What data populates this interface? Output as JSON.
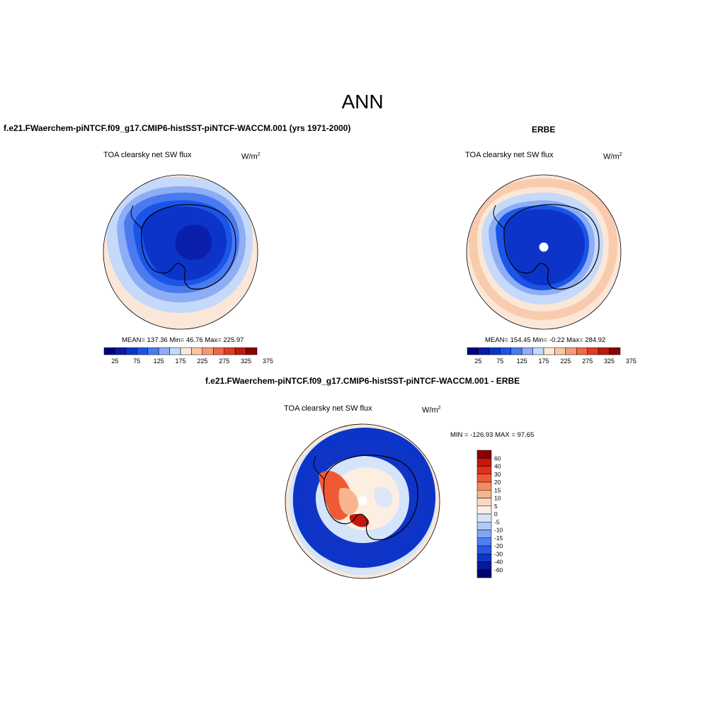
{
  "season_title": "ANN",
  "panels": [
    {
      "case_title": "f.e21.FWaerchem-piNTCF.f09_g17.CMIP6-histSST-piNTCF-WACCM.001 (yrs 1971-2000)",
      "variable": "TOA clearsky net SW flux",
      "units_base": "W/m",
      "units_sup": "2",
      "stats": "MEAN= 137.36  Min=  46.76  Max= 225.97"
    },
    {
      "case_title": "ERBE",
      "variable": "TOA clearsky net SW flux",
      "units_base": "W/m",
      "units_sup": "2",
      "stats": "MEAN= 154.45  Min=  -0.22  Max= 284.92"
    },
    {
      "case_title": "f.e21.FWaerchem-piNTCF.f09_g17.CMIP6-histSST-piNTCF-WACCM.001 - ERBE",
      "variable": "TOA clearsky net SW flux",
      "units_base": "W/m",
      "units_sup": "2",
      "stats": "MIN = -126.93 MAX =  97.65"
    }
  ],
  "abs_colorbar": {
    "colors": [
      "#000080",
      "#0a1aa3",
      "#0d34c8",
      "#1a55e8",
      "#4a7af0",
      "#8daef5",
      "#c5d9fa",
      "#fbe7d8",
      "#f8c6a6",
      "#f39a76",
      "#ef6a45",
      "#e63a1c",
      "#bf1a10",
      "#8b0000"
    ],
    "labels": [
      "25",
      "75",
      "125",
      "175",
      "225",
      "275",
      "325",
      "375"
    ]
  },
  "diff_colorbar": {
    "colors": [
      "#8b0000",
      "#c4160f",
      "#e3301a",
      "#ef5a35",
      "#f38c63",
      "#f7b48e",
      "#fbd8bf",
      "#fdeee2",
      "#d3e4fb",
      "#aecbf7",
      "#7ea6f1",
      "#4f7fee",
      "#2a58e3",
      "#1035c4",
      "#061a9c",
      "#000070"
    ],
    "labels": [
      "60",
      "40",
      "30",
      "20",
      "15",
      "10",
      "5",
      "0",
      "-5",
      "-10",
      "-15",
      "-20",
      "-30",
      "-40",
      "-60"
    ]
  }
}
